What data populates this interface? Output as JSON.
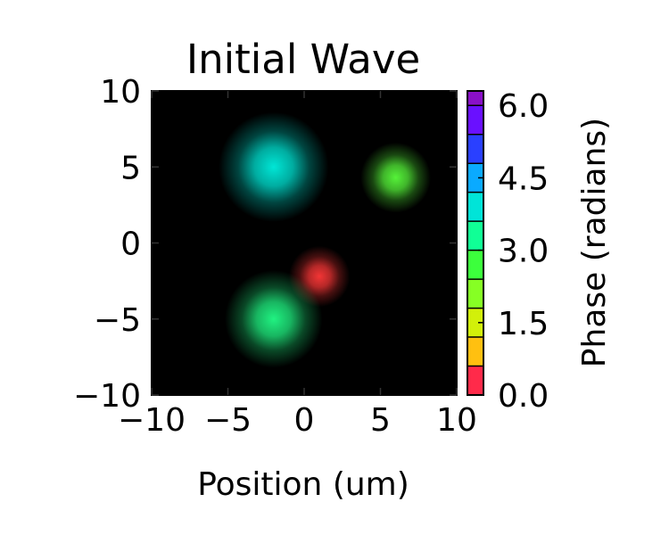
{
  "chart_data": {
    "type": "heatmap",
    "title": "Initial Wave",
    "xlabel": "Position (um)",
    "ylabel": "",
    "xlim": [
      -10,
      10
    ],
    "ylim": [
      -10,
      10
    ],
    "xticks": [
      -10,
      -5,
      0,
      5,
      10
    ],
    "yticks": [
      -10,
      -5,
      0,
      5,
      10
    ],
    "xtick_labels": [
      "−10",
      "−5",
      "0",
      "5",
      "10"
    ],
    "ytick_labels": [
      "−10",
      "−5",
      "0",
      "5",
      "10"
    ],
    "background": "#000000",
    "grid": false,
    "blobs": [
      {
        "x": -2,
        "y": 5,
        "radius": 3.6,
        "phase": 3.6,
        "color": "#00e6d6",
        "intensity": 1.0
      },
      {
        "x": 6,
        "y": 4.3,
        "radius": 2.3,
        "phase": 2.1,
        "color": "#5aff3c",
        "intensity": 0.95
      },
      {
        "x": 1,
        "y": -2.2,
        "radius": 2.0,
        "phase": 0.0,
        "color": "#ff3838",
        "intensity": 0.95
      },
      {
        "x": -2,
        "y": -5,
        "radius": 3.2,
        "phase": 2.7,
        "color": "#22ff88",
        "intensity": 0.95
      }
    ],
    "colorbar": {
      "label": "Phase (radians)",
      "range": [
        0,
        6.3
      ],
      "ticks": [
        0.0,
        1.5,
        3.0,
        4.5,
        6.0
      ],
      "tick_labels": [
        "0.0",
        "1.5",
        "3.0",
        "4.5",
        "6.0"
      ],
      "levels": [
        {
          "from": 0.0,
          "to": 0.6,
          "color": "#ff2a4a"
        },
        {
          "from": 0.6,
          "to": 1.2,
          "color": "#ffc010"
        },
        {
          "from": 1.2,
          "to": 1.8,
          "color": "#d2f00a"
        },
        {
          "from": 1.8,
          "to": 2.4,
          "color": "#86ff24"
        },
        {
          "from": 2.4,
          "to": 3.0,
          "color": "#3cff3c"
        },
        {
          "from": 3.0,
          "to": 3.6,
          "color": "#10ff96"
        },
        {
          "from": 3.6,
          "to": 4.2,
          "color": "#00e4d8"
        },
        {
          "from": 4.2,
          "to": 4.8,
          "color": "#0aaaff"
        },
        {
          "from": 4.8,
          "to": 5.4,
          "color": "#2a40ff"
        },
        {
          "from": 5.4,
          "to": 6.0,
          "color": "#6a10ff"
        },
        {
          "from": 6.0,
          "to": 6.3,
          "color": "#8a10c8"
        }
      ]
    }
  }
}
